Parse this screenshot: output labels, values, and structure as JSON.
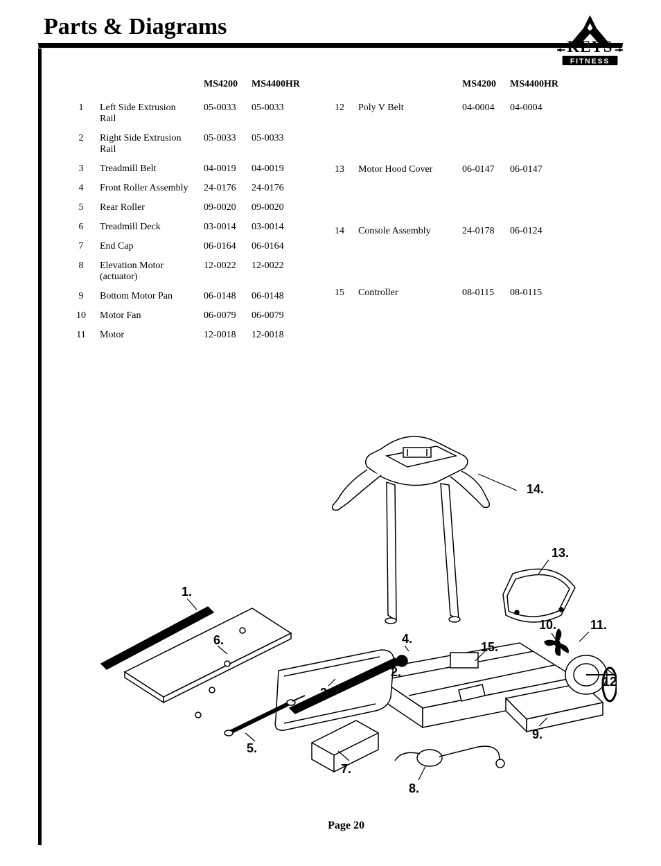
{
  "header": {
    "title": "Parts & Diagrams"
  },
  "logo": {
    "brand_top": "KEYS",
    "brand_sub": "FITNESS"
  },
  "columns": {
    "model_a": "MS4200",
    "model_b": "MS4400HR"
  },
  "table_left": {
    "header": {
      "blank": "",
      "model_a": "MS4200",
      "model_b": "MS4400HR"
    },
    "rows": [
      {
        "num": "1",
        "name": "Left Side Extrusion Rail",
        "a": "05-0033",
        "b": "05-0033"
      },
      {
        "num": "2",
        "name": "Right Side Extrusion Rail",
        "a": "05-0033",
        "b": "05-0033"
      },
      {
        "num": "3",
        "name": "Treadmill Belt",
        "a": "04-0019",
        "b": "04-0019"
      },
      {
        "num": "4",
        "name": "Front Roller Assembly",
        "a": "24-0176",
        "b": "24-0176"
      },
      {
        "num": "5",
        "name": "Rear Roller",
        "a": "09-0020",
        "b": "09-0020"
      },
      {
        "num": "6",
        "name": "Treadmill Deck",
        "a": "03-0014",
        "b": "03-0014"
      },
      {
        "num": "7",
        "name": "End Cap",
        "a": "06-0164",
        "b": "06-0164"
      },
      {
        "num": "8",
        "name": "Elevation Motor (actuator)",
        "a": "12-0022",
        "b": "12-0022"
      },
      {
        "num": "9",
        "name": "Bottom Motor Pan",
        "a": "06-0148",
        "b": "06-0148"
      },
      {
        "num": "10",
        "name": "Motor Fan",
        "a": "06-0079",
        "b": "06-0079"
      },
      {
        "num": "11",
        "name": "Motor",
        "a": "12-0018",
        "b": "12-0018"
      }
    ]
  },
  "table_right": {
    "header": {
      "blank": "",
      "model_a": "MS4200",
      "model_b": "MS4400HR"
    },
    "rows": [
      {
        "num": "12",
        "name": "Poly V Belt",
        "a": "04-0004",
        "b": "04-0004"
      },
      {
        "num": "13",
        "name": "Motor Hood Cover",
        "a": "06-0147",
        "b": "06-0147"
      },
      {
        "num": "14",
        "name": "Console Assembly",
        "a": "24-0178",
        "b": "06-0124"
      },
      {
        "num": "15",
        "name": "Controller",
        "a": "08-0115",
        "b": "08-0115"
      }
    ]
  },
  "diagram": {
    "callouts": {
      "c1": "1.",
      "c2": "2.",
      "c3": "3.",
      "c4": "4.",
      "c5": "5.",
      "c6": "6.",
      "c7": "7.",
      "c8": "8.",
      "c9": "9.",
      "c10": "10.",
      "c11": "11.",
      "c12": "12.",
      "c13": "13.",
      "c14": "14.",
      "c15": "15."
    },
    "stroke": "#000000",
    "fill_bg": "#ffffff"
  },
  "footer": {
    "page_label": "Page 20"
  }
}
